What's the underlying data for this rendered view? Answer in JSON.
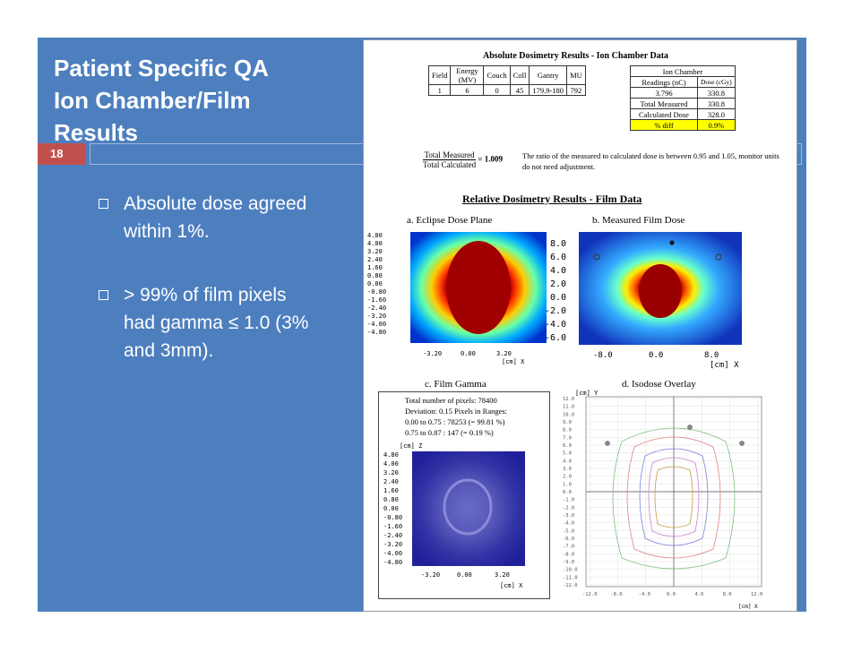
{
  "slide": {
    "title_lines": [
      "Patient Specific QA",
      "Ion Chamber/Film",
      "Results"
    ],
    "slide_number": "18",
    "bullets": [
      {
        "lines": [
          "Absolute dose agreed",
          "within 1%."
        ]
      },
      {
        "lines": [
          "> 99% of film pixels",
          "had gamma ≤ 1.0 (3%",
          "and 3mm)."
        ]
      }
    ]
  },
  "absolute": {
    "title": "Absolute Dosimetry Results - Ion Chamber Data",
    "headers": [
      "Field",
      "Energy (MV)",
      "Couch",
      "Coll",
      "Gantry",
      "MU"
    ],
    "row": [
      "1",
      "6",
      "0",
      "45",
      "179.9-180",
      "792"
    ],
    "ion_chamber_header": "Ion Chamber",
    "readings_header": "Readings (nC)",
    "dose_header": "Dose (cGy)",
    "reading_value": "3.796",
    "dose_value": "330.8",
    "total_measured_label": "Total Measured",
    "total_measured_value": "330.8",
    "calculated_label": "Calculated Dose",
    "calculated_value": "328.0",
    "diff_label": "% diff",
    "diff_value": "0.9%",
    "ratio_numerator": "Total Measured",
    "ratio_denominator": "Total Calculated",
    "ratio_value": "= 1.009",
    "note": "The ratio of the measured to calculated dose is between 0.95 and 1.05, monitor units do not need adjustment."
  },
  "relative": {
    "title": "Relative Dosimetry Results - Film Data",
    "panel_a": "a. Eclipse Dose Plane",
    "panel_b": "b. Measured Film Dose",
    "panel_c": "c. Film Gamma",
    "panel_d": "d. Isodose Overlay",
    "gamma_stats": [
      "Total number of pixels: 78400",
      "Deviation: 0.15 Pixels in Ranges:",
      "0.00 to 0.75 :  78253 (= 99.81 %)",
      "0.75 to 0.87 :  147 (= 0.19 %)"
    ],
    "a_yticks": [
      "4.80",
      "4.00",
      "3.20",
      "2.40",
      "1.60",
      "0.80",
      "0.00",
      "-0.80",
      "-1.60",
      "-2.40",
      "-3.20",
      "-4.00",
      "-4.80"
    ],
    "a_xticks": [
      "-3.20",
      "0.00",
      "3.20"
    ],
    "a_xunit": "[cm] X",
    "b_yticks": [
      "8.0",
      "6.0",
      "4.0",
      "2.0",
      "0.0",
      "-2.0",
      "-4.0",
      "-6.0"
    ],
    "b_xticks": [
      "-8.0",
      "0.0",
      "8.0"
    ],
    "b_xunit": "[cm] X",
    "c_yunit": "[cm] Z",
    "c_yticks": [
      "4.80",
      "4.00",
      "3.20",
      "2.40",
      "1.60",
      "0.80",
      "0.00",
      "-0.80",
      "-1.60",
      "-2.40",
      "-3.20",
      "-4.00",
      "-4.80"
    ],
    "c_xticks": [
      "-3.20",
      "0.00",
      "3.20"
    ],
    "c_xunit": "[cm] X",
    "d_yunit": "[cm] Y",
    "d_yticks": [
      "12.0",
      "11.0",
      "10.0",
      "9.0",
      "8.0",
      "7.0",
      "6.0",
      "5.0",
      "4.0",
      "3.0",
      "2.0",
      "1.0",
      "0.0",
      "-1.0",
      "-2.0",
      "-3.0",
      "-4.0",
      "-5.0",
      "-6.0",
      "-7.0",
      "-8.0",
      "-9.0",
      "-10.0",
      "-11.0",
      "-12.0"
    ],
    "d_xticks": [
      "-12.0",
      "-8.0",
      "-4.0",
      "0.0",
      "4.0",
      "8.0",
      "12.0"
    ],
    "d_xunit": "[cm] X"
  },
  "colors": {
    "slide_blue": "#4d7fbf",
    "slide_number_red": "#c0504d",
    "highlight_yellow": "#ffff00",
    "dose_core": "#8b0000",
    "film_gamma": "#2a2a9a"
  }
}
